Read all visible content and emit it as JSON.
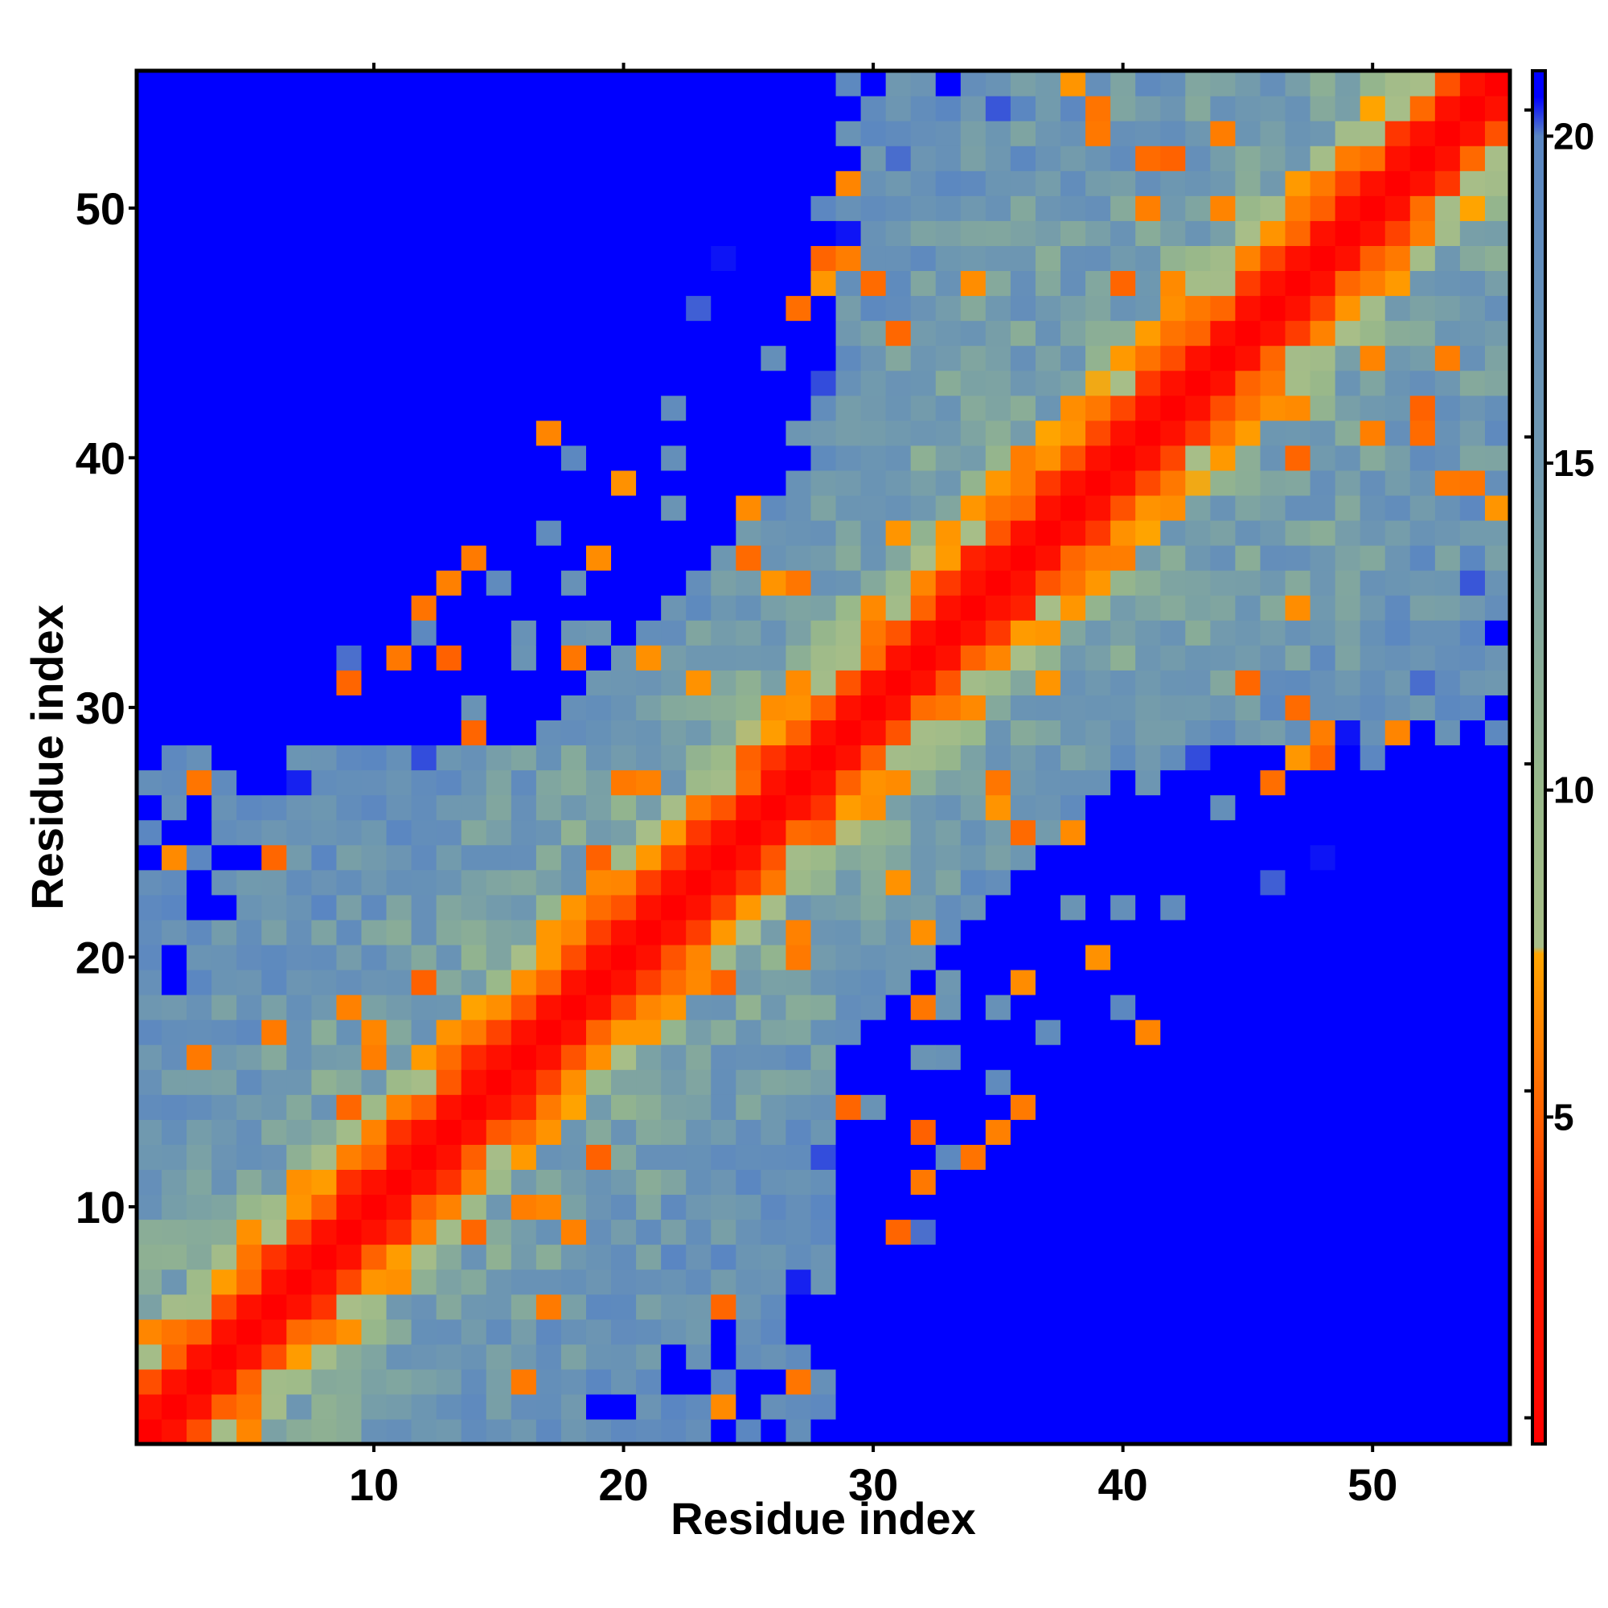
{
  "chart_data": {
    "type": "heatmap",
    "title": "",
    "xlabel": "Residue index",
    "ylabel": "Residue index",
    "n": 55,
    "xlim": [
      0.5,
      55.5
    ],
    "ylim": [
      0.5,
      55.5
    ],
    "x_ticks": [
      10,
      20,
      30,
      40,
      50
    ],
    "y_ticks": [
      10,
      20,
      30,
      40,
      50
    ],
    "x_tick_labels": [
      "10",
      "20",
      "30",
      "40",
      "50"
    ],
    "y_tick_labels": [
      "10",
      "20",
      "30",
      "40",
      "50"
    ],
    "colorbar": {
      "ticks": [
        5,
        10,
        15,
        20
      ],
      "tick_labels": [
        "5",
        "10",
        "15",
        "20"
      ],
      "range": [
        0,
        21
      ],
      "colors": [
        {
          "value": 0,
          "color": "#ff0000"
        },
        {
          "value": 3,
          "color": "#ff2000"
        },
        {
          "value": 5,
          "color": "#ff6000"
        },
        {
          "value": 7.5,
          "color": "#ffa500"
        },
        {
          "value": 7.6,
          "color": "#a8be88"
        },
        {
          "value": 10,
          "color": "#98b88a"
        },
        {
          "value": 15,
          "color": "#6f98b0"
        },
        {
          "value": 20,
          "color": "#5a86c2"
        },
        {
          "value": 20.6,
          "color": "#0000ff"
        },
        {
          "value": 21,
          "color": "#0000ff"
        }
      ]
    },
    "value_rule": "distance grows with |i - j| between residues (diagonal = 0); values beyond 20.6 shown as saturated blue",
    "contact_model": {
      "diagonal_band": 1.5,
      "helix_region": [
        [
          30,
          55
        ],
        [
          30,
          55
        ]
      ],
      "sheet_region": [
        [
          1,
          28
        ],
        [
          1,
          28
        ]
      ],
      "far_cutoff": 22
    }
  }
}
